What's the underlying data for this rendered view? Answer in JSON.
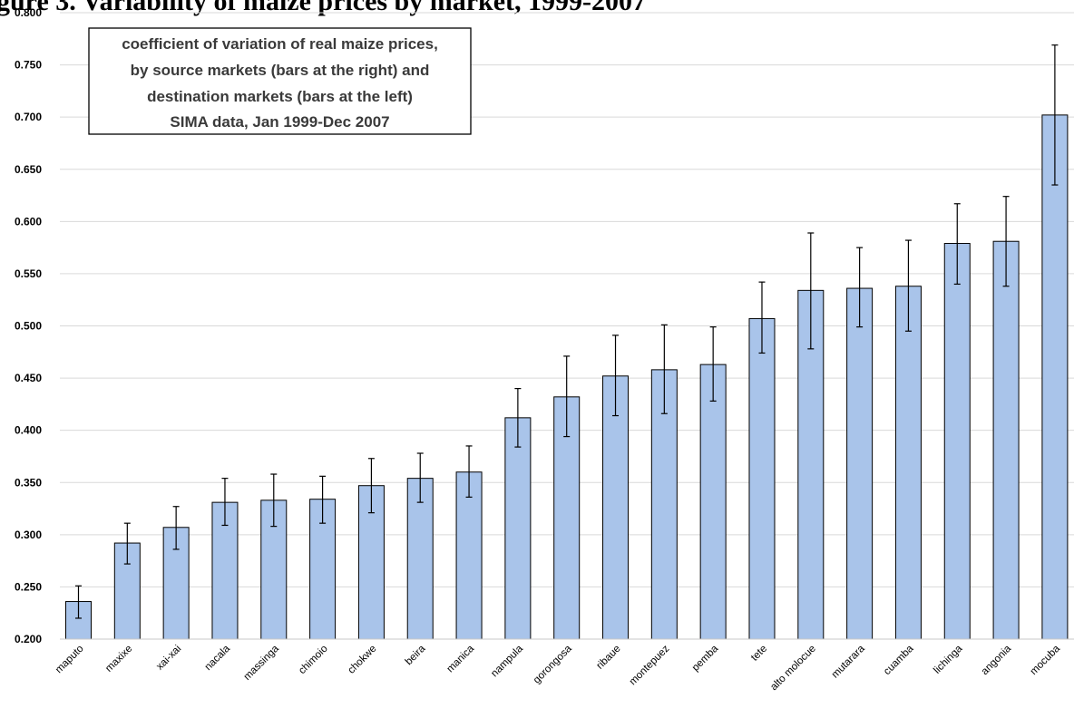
{
  "page": {
    "title_fragment": "gure 3.    Variability of maize prices by market, 1999-2007"
  },
  "chart_data": {
    "type": "bar",
    "title": "",
    "xlabel": "",
    "ylabel": "",
    "ylim": [
      0.2,
      0.8
    ],
    "yticks": [
      "0.200",
      "0.250",
      "0.300",
      "0.350",
      "0.400",
      "0.450",
      "0.500",
      "0.550",
      "0.600",
      "0.650",
      "0.700",
      "0.750",
      "0.800"
    ],
    "grid": true,
    "legend": "none",
    "bar_color": "#a9c4ea",
    "bar_edge_color": "#000000",
    "categories": [
      "maputo",
      "maxixe",
      "xai-xai",
      "nacala",
      "massinga",
      "chimoio",
      "chokwe",
      "beira",
      "manica",
      "nampula",
      "gorongosa",
      "ribaue",
      "montepuez",
      "pemba",
      "tete",
      "alto molocue",
      "mutarara",
      "cuamba",
      "lichinga",
      "angonia",
      "mocuba"
    ],
    "values": [
      0.236,
      0.292,
      0.307,
      0.331,
      0.333,
      0.334,
      0.347,
      0.354,
      0.36,
      0.412,
      0.432,
      0.452,
      0.458,
      0.463,
      0.507,
      0.534,
      0.536,
      0.538,
      0.579,
      0.581,
      0.702
    ],
    "error_low": [
      0.22,
      0.272,
      0.286,
      0.309,
      0.308,
      0.311,
      0.321,
      0.331,
      0.336,
      0.384,
      0.394,
      0.414,
      0.416,
      0.428,
      0.474,
      0.478,
      0.499,
      0.495,
      0.54,
      0.538,
      0.635
    ],
    "error_high": [
      0.251,
      0.311,
      0.327,
      0.354,
      0.358,
      0.356,
      0.373,
      0.378,
      0.385,
      0.44,
      0.471,
      0.491,
      0.501,
      0.499,
      0.542,
      0.589,
      0.575,
      0.582,
      0.617,
      0.624,
      0.769
    ],
    "annotation": [
      "coefficient of variation of real maize prices,",
      "by source markets (bars at the right) and",
      "destination markets (bars at the left)",
      "SIMA data, Jan 1999-Dec 2007"
    ]
  }
}
